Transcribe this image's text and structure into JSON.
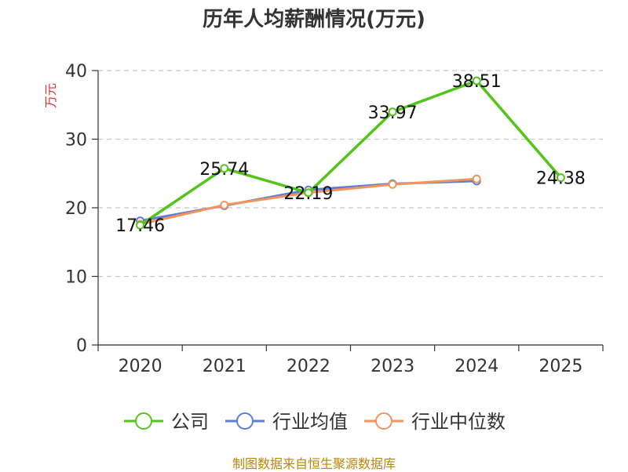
{
  "chart_data": {
    "type": "line",
    "title": "历年人均薪酬情况(万元)",
    "ylabel": "万元",
    "xlabel": "",
    "categories": [
      "2020",
      "2021",
      "2022",
      "2023",
      "2024",
      "2025"
    ],
    "ylim": [
      0,
      40
    ],
    "yticks": [
      0,
      10,
      20,
      30,
      40
    ],
    "grid": true,
    "legend_position": "bottom",
    "series": [
      {
        "name": "公司",
        "color": "#52c41a",
        "values": [
          17.46,
          25.74,
          22.19,
          33.97,
          38.51,
          24.38
        ],
        "labels": [
          "17.46",
          "25.74",
          "22.19",
          "33.97",
          "38.51",
          "24.38"
        ]
      },
      {
        "name": "行业均值",
        "color": "#5b7fd6",
        "values": [
          18.1,
          20.3,
          22.6,
          23.5,
          23.9,
          null
        ]
      },
      {
        "name": "行业中位数",
        "color": "#f4935a",
        "values": [
          17.6,
          20.4,
          22.2,
          23.4,
          24.2,
          null
        ]
      }
    ],
    "ylabel_color": "#e03030"
  },
  "footer": {
    "source": "制图数据来自恒生聚源数据库"
  }
}
